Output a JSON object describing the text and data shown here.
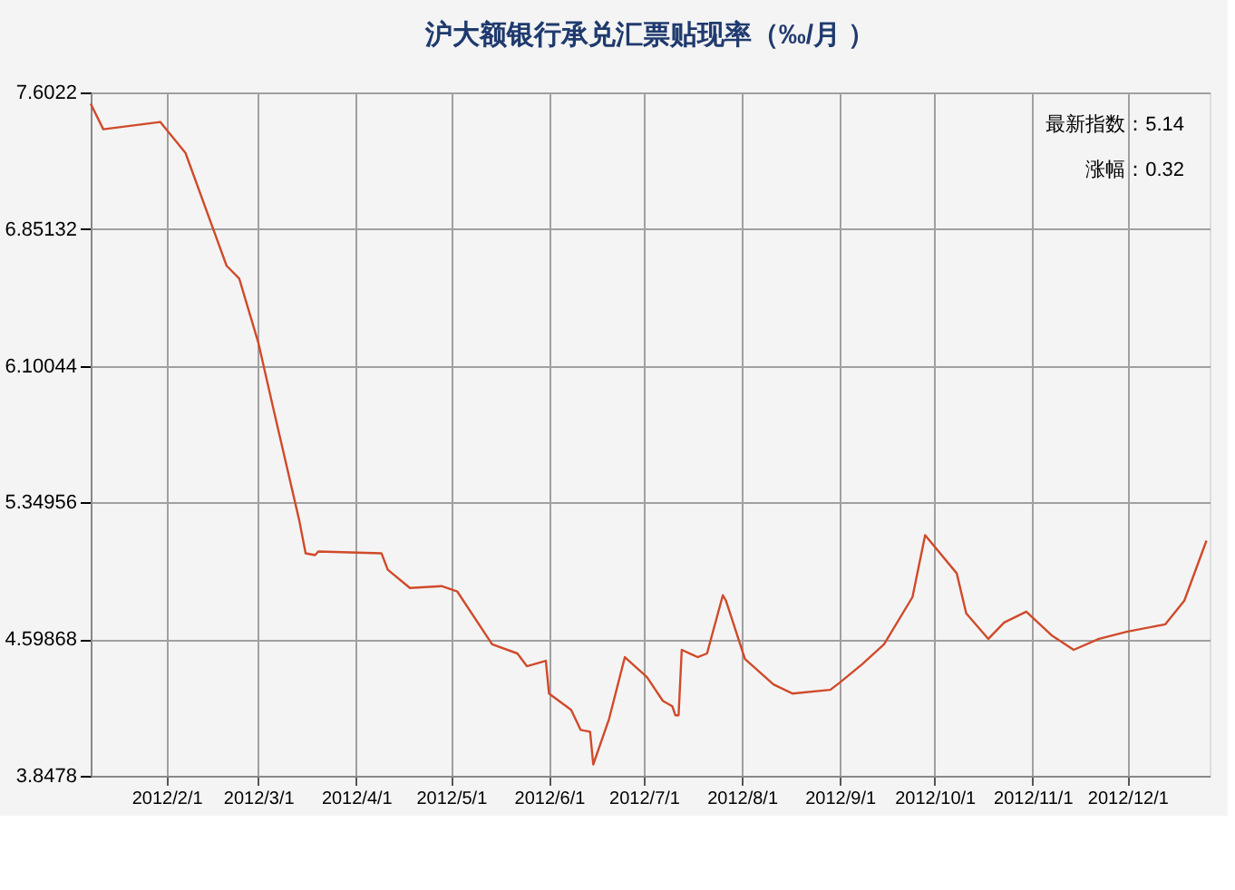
{
  "chart_data": {
    "type": "line",
    "title": "沪大额银行承兑汇票贴现率（‰/月 ）",
    "x": [
      "2012-01-08",
      "2012-01-12",
      "2012-01-30",
      "2012-02-07",
      "2012-02-20",
      "2012-02-24",
      "2012-03-01",
      "2012-03-06",
      "2012-03-14",
      "2012-03-16",
      "2012-03-19",
      "2012-03-20",
      "2012-04-09",
      "2012-04-11",
      "2012-04-18",
      "2012-04-28",
      "2012-05-03",
      "2012-05-14",
      "2012-05-22",
      "2012-05-25",
      "2012-05-31",
      "2012-06-01",
      "2012-06-08",
      "2012-06-11",
      "2012-06-14",
      "2012-06-15",
      "2012-06-20",
      "2012-06-25",
      "2012-07-02",
      "2012-07-07",
      "2012-07-10",
      "2012-07-11",
      "2012-07-12",
      "2012-07-13",
      "2012-07-18",
      "2012-07-21",
      "2012-07-26",
      "2012-07-27",
      "2012-08-02",
      "2012-08-11",
      "2012-08-17",
      "2012-08-29",
      "2012-09-01",
      "2012-09-08",
      "2012-09-15",
      "2012-09-24",
      "2012-09-28",
      "2012-10-08",
      "2012-10-11",
      "2012-10-18",
      "2012-10-23",
      "2012-10-30",
      "2012-11-07",
      "2012-11-14",
      "2012-11-22",
      "2012-12-01",
      "2012-12-13",
      "2012-12-19",
      "2012-12-26"
    ],
    "series": [
      {
        "color": "#d04a2a",
        "values": [
          7.54,
          7.4,
          7.44,
          7.27,
          6.65,
          6.58,
          6.23,
          5.85,
          5.25,
          5.07,
          5.06,
          5.08,
          5.07,
          4.98,
          4.88,
          4.89,
          4.86,
          4.57,
          4.52,
          4.45,
          4.48,
          4.3,
          4.21,
          4.1,
          4.09,
          3.91,
          4.16,
          4.5,
          4.39,
          4.26,
          4.23,
          4.18,
          4.18,
          4.54,
          4.5,
          4.52,
          4.84,
          4.81,
          4.49,
          4.35,
          4.3,
          4.32,
          4.36,
          4.46,
          4.57,
          4.83,
          5.17,
          4.96,
          4.74,
          4.6,
          4.69,
          4.75,
          4.62,
          4.54,
          4.6,
          4.64,
          4.68,
          4.81,
          5.14
        ]
      }
    ],
    "xlim": [
      "2012-01-08",
      "2012-12-27"
    ],
    "xticks": [
      {
        "value": "2012-02-01",
        "label": "2012/2/1"
      },
      {
        "value": "2012-03-01",
        "label": "2012/3/1"
      },
      {
        "value": "2012-04-01",
        "label": "2012/4/1"
      },
      {
        "value": "2012-05-01",
        "label": "2012/5/1"
      },
      {
        "value": "2012-06-01",
        "label": "2012/6/1"
      },
      {
        "value": "2012-07-01",
        "label": "2012/7/1"
      },
      {
        "value": "2012-08-01",
        "label": "2012/8/1"
      },
      {
        "value": "2012-09-01",
        "label": "2012/9/1"
      },
      {
        "value": "2012-10-01",
        "label": "2012/10/1"
      },
      {
        "value": "2012-11-01",
        "label": "2012/11/1"
      },
      {
        "value": "2012-12-01",
        "label": "2012/12/1"
      }
    ],
    "ylim": [
      3.8478,
      7.6022
    ],
    "yticks": [
      3.8478,
      4.59868,
      5.34956,
      6.10044,
      6.85132,
      7.6022
    ],
    "grid": true,
    "annotations": [
      "最新指数：5.14",
      "涨幅：0.32"
    ]
  }
}
